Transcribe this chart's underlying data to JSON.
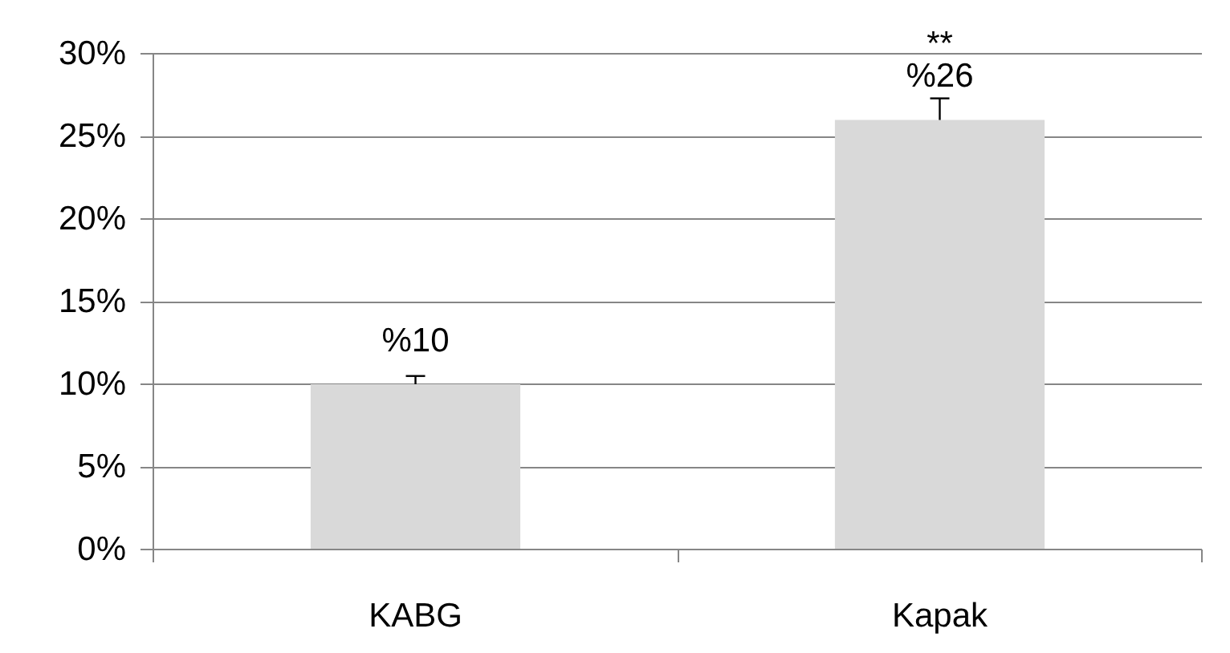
{
  "chart_data": {
    "type": "bar",
    "categories": [
      "KABG",
      "Kapak"
    ],
    "values": [
      10,
      26
    ],
    "color": "#d9d9d9",
    "errors": [
      0.5,
      1.3
    ],
    "value_labels": [
      "%10",
      "%26"
    ],
    "ylim": [
      0,
      30
    ],
    "yticks": [
      {
        "value": 0,
        "label": "0%"
      },
      {
        "value": 5,
        "label": "5%"
      },
      {
        "value": 10,
        "label": "10%"
      },
      {
        "value": 15,
        "label": "15%"
      },
      {
        "value": 20,
        "label": "20%"
      },
      {
        "value": 25,
        "label": "25%"
      },
      {
        "value": 30,
        "label": "30%"
      }
    ],
    "grid": "y",
    "annotations": [
      {
        "text": "**",
        "x": "Kapak",
        "y": 26
      }
    ]
  }
}
